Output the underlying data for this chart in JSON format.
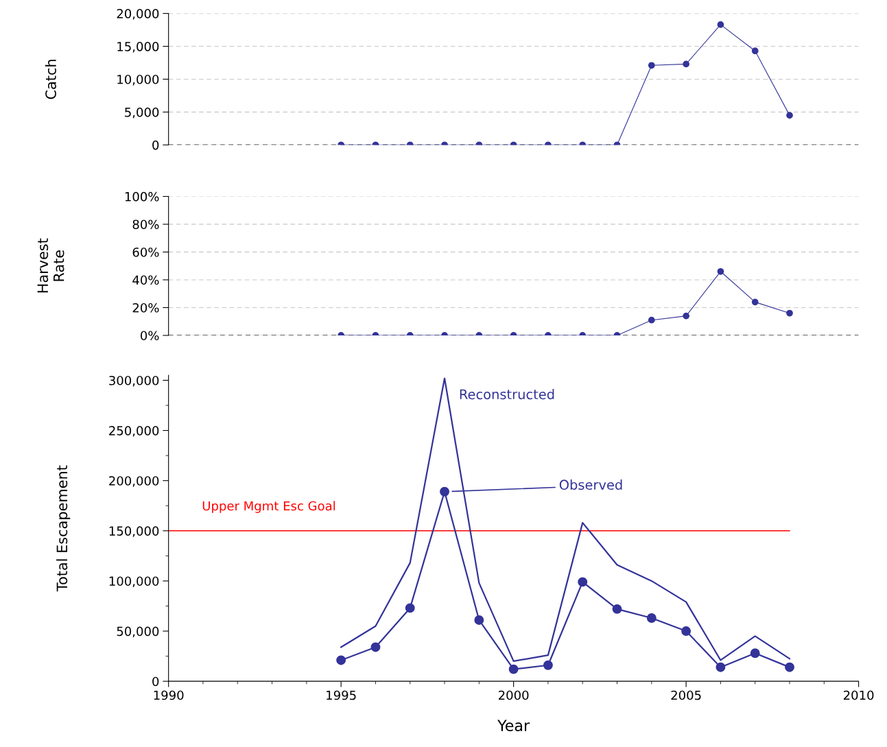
{
  "chart_data": [
    {
      "type": "line",
      "ylabel": "Catch",
      "x": [
        1995,
        1996,
        1997,
        1998,
        1999,
        2000,
        2001,
        2002,
        2003,
        2004,
        2005,
        2006,
        2007,
        2008
      ],
      "series": [
        {
          "color": "#333399",
          "values": [
            0,
            0,
            0,
            0,
            0,
            0,
            0,
            0,
            0,
            12100,
            12300,
            18300,
            14300,
            4500
          ]
        }
      ],
      "xlim": [
        1990,
        2010
      ],
      "ylim": [
        0,
        20000
      ],
      "yticks": [
        0,
        {
          "value": 5000,
          "label": "5,000"
        },
        {
          "value": 10000,
          "label": "10,000"
        },
        {
          "value": 15000,
          "label": "15,000"
        },
        {
          "value": 20000,
          "label": "20,000"
        }
      ],
      "tick_labels": "y",
      "grid": "y",
      "marker": "circle",
      "line_style": "solid",
      "ref_lines": [
        {
          "axis": "y",
          "value": 0,
          "color": "#333333",
          "line_style": "dashed"
        }
      ]
    },
    {
      "type": "line",
      "ylabel": "Harvest\nRate",
      "x": [
        1995,
        1996,
        1997,
        1998,
        1999,
        2000,
        2001,
        2002,
        2003,
        2004,
        2005,
        2006,
        2007,
        2008
      ],
      "series": [
        {
          "color": "#333399",
          "values": [
            0,
            0,
            0,
            0,
            0,
            0,
            0,
            0,
            0,
            11,
            14,
            46,
            24,
            16
          ]
        }
      ],
      "xlim": [
        1990,
        2010
      ],
      "ylim": [
        0,
        100
      ],
      "yticks": [
        {
          "value": 0,
          "label": "0%"
        },
        {
          "value": 20,
          "label": "20%"
        },
        {
          "value": 40,
          "label": "40%"
        },
        {
          "value": 60,
          "label": "60%"
        },
        {
          "value": 80,
          "label": "80%"
        },
        {
          "value": 100,
          "label": "100%"
        }
      ],
      "tick_labels": "y",
      "grid": "y",
      "marker": "circle",
      "line_style": "solid",
      "ref_lines": [
        {
          "axis": "y",
          "value": 0,
          "color": "#333333",
          "line_style": "dashed"
        }
      ]
    },
    {
      "type": "line",
      "ylabel": "Total Escapement",
      "xlabel": "Year",
      "x": [
        1995,
        1996,
        1997,
        1998,
        1999,
        2000,
        2001,
        2002,
        2003,
        2004,
        2005,
        2006,
        2007,
        2008
      ],
      "series": [
        {
          "name": "Reconstructed",
          "color": "#333399",
          "marker": "none",
          "values": [
            34000,
            55000,
            118000,
            302000,
            98000,
            20000,
            26000,
            158000,
            116000,
            100000,
            79000,
            21000,
            45000,
            22500
          ]
        },
        {
          "name": "Observed",
          "color": "#333399",
          "marker": "circle",
          "values": [
            21000,
            34000,
            73000,
            189000,
            61000,
            12000,
            16000,
            99000,
            72000,
            63000,
            50000,
            14000,
            28000,
            14000
          ]
        }
      ],
      "xlim": [
        1990,
        2010
      ],
      "ylim": [
        0,
        305000
      ],
      "xticks": [
        1990,
        {
          "value": 1991,
          "label": null
        },
        {
          "value": 1992,
          "label": null
        },
        {
          "value": 1993,
          "label": null
        },
        {
          "value": 1994,
          "label": null
        },
        1995,
        {
          "value": 1996,
          "label": null
        },
        {
          "value": 1997,
          "label": null
        },
        {
          "value": 1998,
          "label": null
        },
        {
          "value": 1999,
          "label": null
        },
        2000,
        {
          "value": 2001,
          "label": null
        },
        {
          "value": 2002,
          "label": null
        },
        {
          "value": 2003,
          "label": null
        },
        {
          "value": 2004,
          "label": null
        },
        2005,
        {
          "value": 2006,
          "label": null
        },
        {
          "value": 2007,
          "label": null
        },
        {
          "value": 2008,
          "label": null
        },
        {
          "value": 2009,
          "label": null
        },
        2010
      ],
      "yticks": [
        0,
        {
          "value": 25000,
          "label": null
        },
        {
          "value": 50000,
          "label": "50,000"
        },
        {
          "value": 75000,
          "label": null
        },
        {
          "value": 100000,
          "label": "100,000"
        },
        {
          "value": 125000,
          "label": null
        },
        {
          "value": 150000,
          "label": "150,000"
        },
        {
          "value": 175000,
          "label": null
        },
        {
          "value": 200000,
          "label": "200,000"
        },
        {
          "value": 225000,
          "label": null
        },
        {
          "value": 250000,
          "label": "250,000"
        },
        {
          "value": 275000,
          "label": null
        },
        {
          "value": 300000,
          "label": "300,000"
        }
      ],
      "grid": false,
      "line_style": "solid",
      "ref_lines": [
        {
          "axis": "y",
          "value": 150000,
          "label": "Upper Mgmt Esc Goal",
          "color": "#ff0000",
          "line_style": "solid"
        }
      ]
    }
  ]
}
